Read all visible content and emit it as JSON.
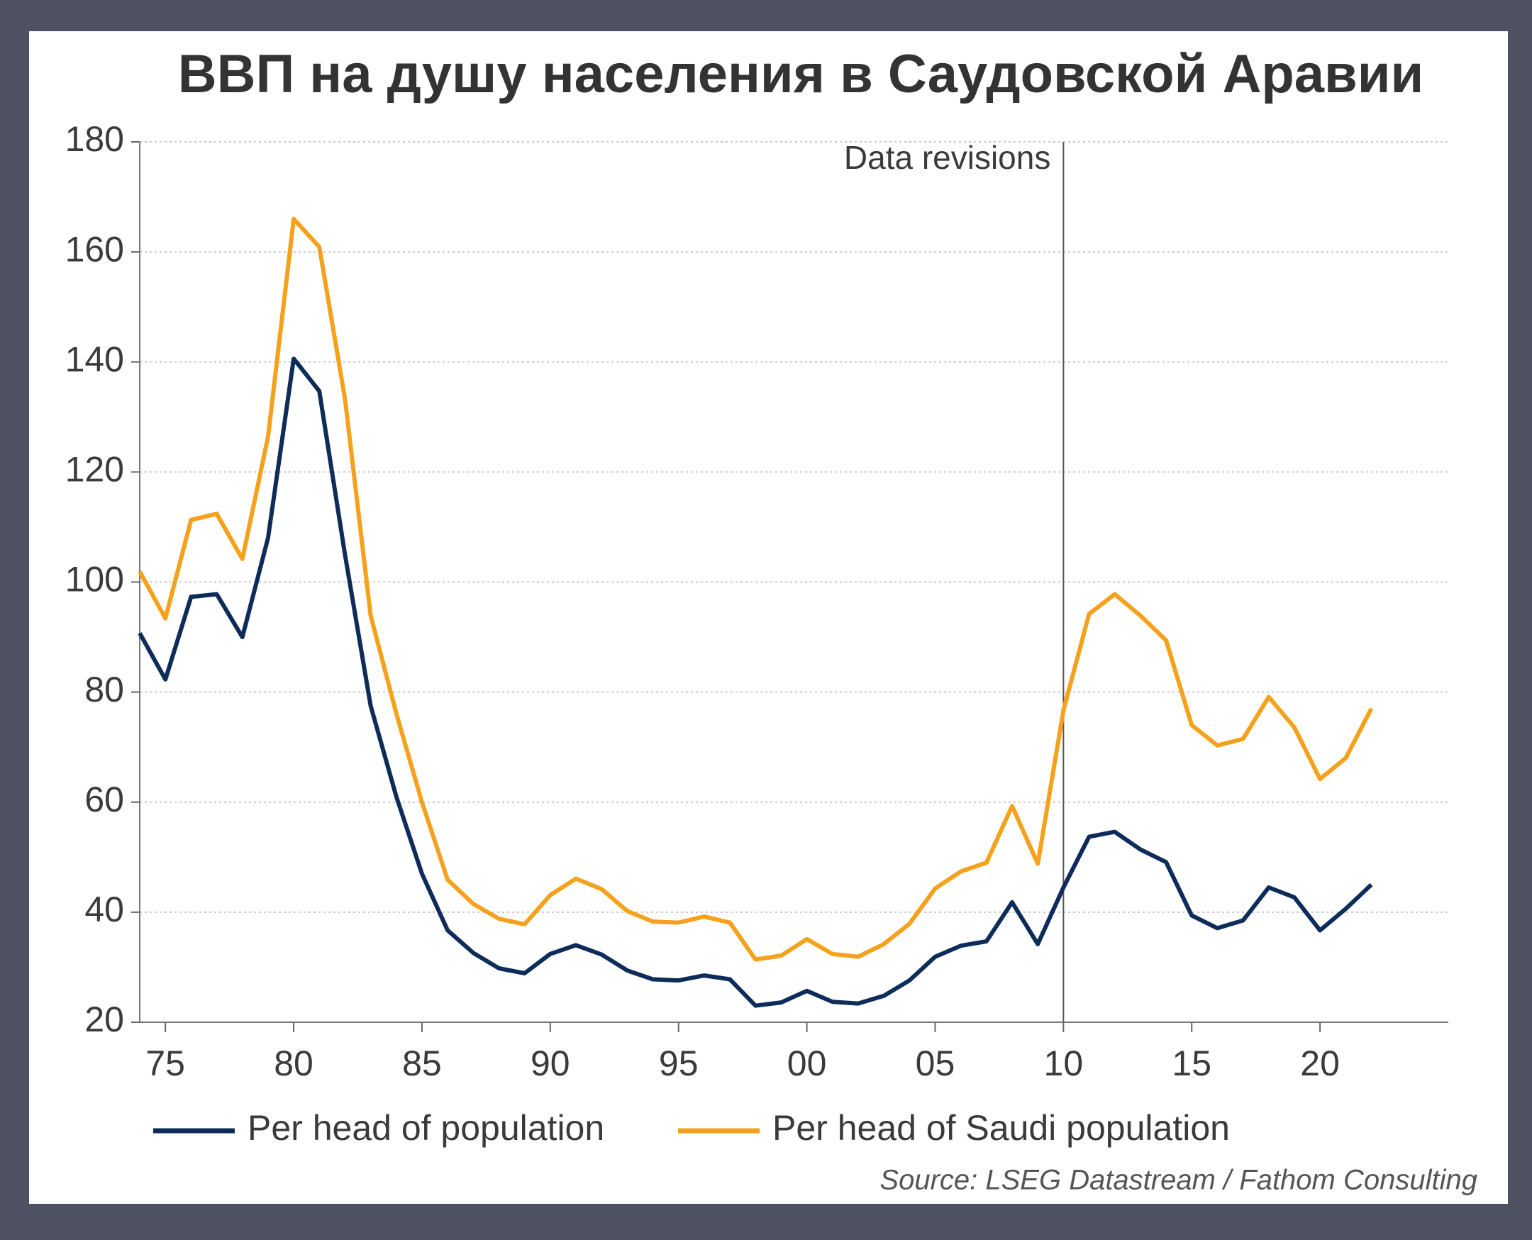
{
  "chart_data": {
    "type": "line",
    "title": "ВВП на душу населения в Саудовской Аравии",
    "source": "Source: LSEG Datastream / Fathom Consulting",
    "annotation": {
      "x": 2010,
      "label": "Data revisions"
    },
    "x": [
      1974,
      1975,
      1976,
      1977,
      1978,
      1979,
      1980,
      1981,
      1982,
      1983,
      1984,
      1985,
      1986,
      1987,
      1988,
      1989,
      1990,
      1991,
      1992,
      1993,
      1994,
      1995,
      1996,
      1997,
      1998,
      1999,
      2000,
      2001,
      2002,
      2003,
      2004,
      2005,
      2006,
      2007,
      2008,
      2009,
      2010,
      2011,
      2012,
      2013,
      2014,
      2015,
      2016,
      2017,
      2018,
      2019,
      2020,
      2021,
      2022
    ],
    "series": [
      {
        "name": "Per head of population",
        "color": "#0d2c5a",
        "values": [
          90.7,
          82.3,
          97.3,
          97.8,
          90,
          108,
          140.6,
          134.7,
          105,
          77.5,
          61,
          47,
          36.7,
          32.6,
          29.8,
          28.9,
          32.4,
          34,
          32.3,
          29.4,
          27.8,
          27.6,
          28.5,
          27.8,
          23,
          23.6,
          25.7,
          23.7,
          23.4,
          24.8,
          27.6,
          31.9,
          33.9,
          34.7,
          41.8,
          34.2,
          44.5,
          53.7,
          54.6,
          51.4,
          49.1,
          39.4,
          37.1,
          38.5,
          44.5,
          42.7,
          36.7,
          40.6,
          45
        ]
      },
      {
        "name": "Per head of Saudi population",
        "color": "#f5a11c",
        "values": [
          101.9,
          93.4,
          111.3,
          112.4,
          104.2,
          126.4,
          166,
          160.9,
          133.3,
          93.9,
          76.1,
          60,
          45.9,
          41.5,
          38.8,
          37.8,
          43.1,
          46.1,
          44.2,
          40.2,
          38.3,
          38.1,
          39.2,
          38.1,
          31.4,
          32.1,
          35.1,
          32.4,
          31.9,
          34.2,
          37.9,
          44.3,
          47.4,
          49,
          59.3,
          48.8,
          76.7,
          94.2,
          97.8,
          93.9,
          89.4,
          74,
          70.3,
          71.5,
          79.1,
          73.6,
          64.2,
          68,
          77
        ]
      }
    ],
    "xlim": [
      1974,
      2025
    ],
    "xticks": [
      {
        "value": 1975,
        "label": "75"
      },
      {
        "value": 1980,
        "label": "80"
      },
      {
        "value": 1985,
        "label": "85"
      },
      {
        "value": 1990,
        "label": "90"
      },
      {
        "value": 1995,
        "label": "95"
      },
      {
        "value": 2000,
        "label": "00"
      },
      {
        "value": 2005,
        "label": "05"
      },
      {
        "value": 2010,
        "label": "10"
      },
      {
        "value": 2015,
        "label": "15"
      },
      {
        "value": 2020,
        "label": "20"
      }
    ],
    "ylim": [
      20,
      180
    ],
    "yticks": [
      20,
      40,
      60,
      80,
      100,
      120,
      140,
      160,
      180
    ],
    "grid": true
  }
}
